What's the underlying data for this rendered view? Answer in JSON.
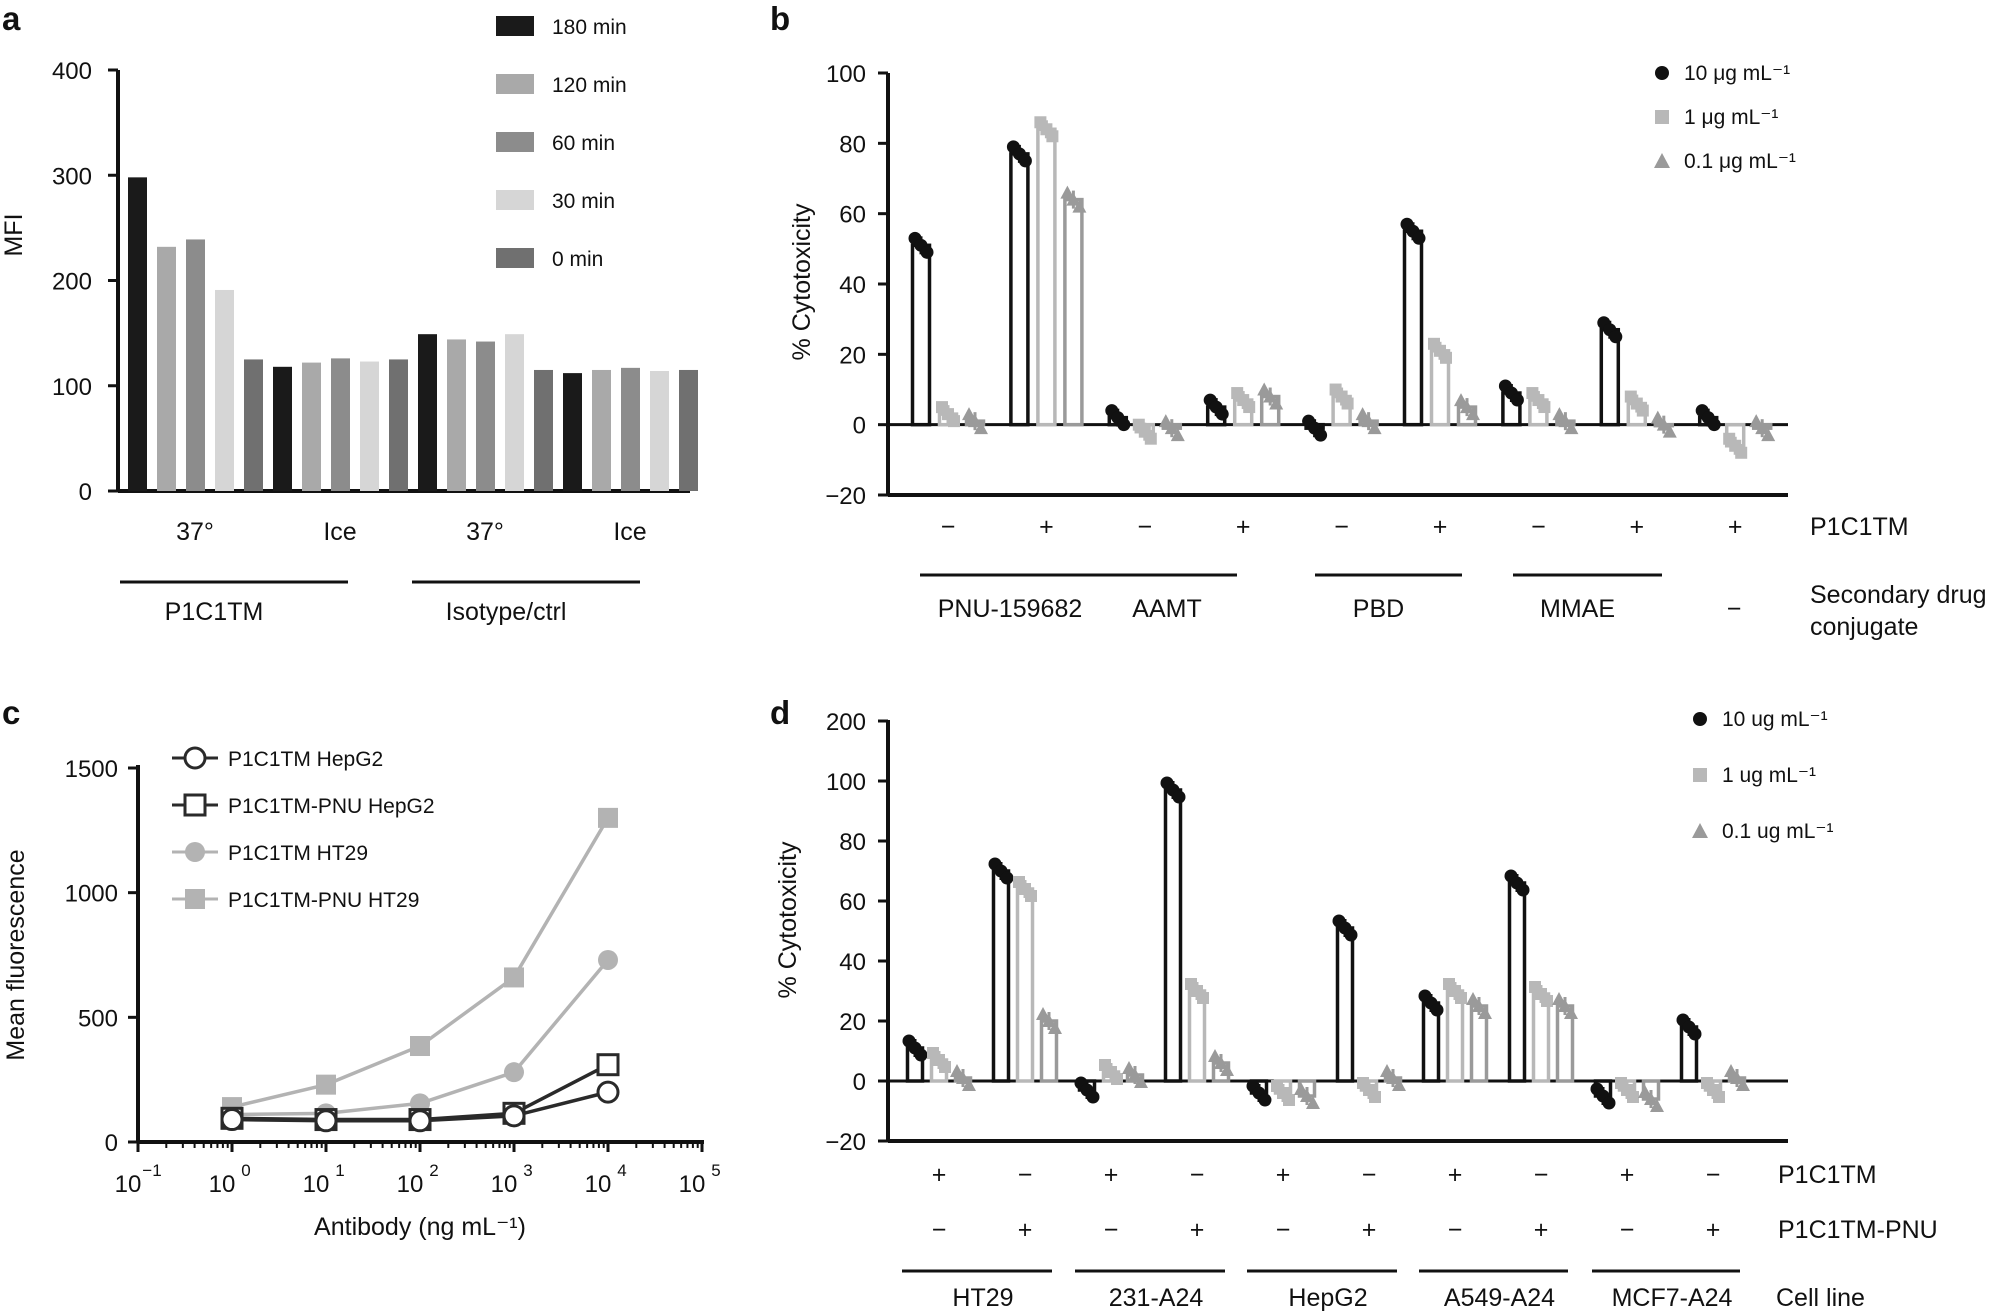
{
  "colors": {
    "c180": "#1a1a1a",
    "c120": "#a9a9a9",
    "c60": "#8c8c8c",
    "c30": "#d6d6d6",
    "c0": "#707070",
    "dose_high": "#111111",
    "dose_mid": "#b8b8b8",
    "dose_low": "#9a9a9a",
    "hepg2": "#2a2a2a",
    "ht29": "#b3b3b3"
  },
  "chart_data": [
    {
      "id": "a",
      "panel_label": "a",
      "type": "bar",
      "ylabel": "MFI",
      "ylim": [
        0,
        400
      ],
      "yticks": [
        "0",
        "100",
        "200",
        "300",
        "400"
      ],
      "legend": [
        "180 min",
        "120 min",
        "60 min",
        "30 min",
        "0 min"
      ],
      "groups": [
        {
          "label": "37°",
          "values": [
            298,
            232,
            239,
            191,
            125
          ]
        },
        {
          "label": "Ice",
          "values": [
            118,
            122,
            126,
            123,
            125
          ]
        },
        {
          "label": "37°",
          "values": [
            149,
            144,
            142,
            149,
            115
          ]
        },
        {
          "label": "Ice",
          "values": [
            112,
            115,
            117,
            114,
            115
          ]
        }
      ],
      "supergroups": [
        "P1C1TM",
        "Isotype/ctrl"
      ]
    },
    {
      "id": "b",
      "panel_label": "b",
      "type": "bar",
      "ylabel": "% Cytotoxicity",
      "ylim": [
        -20,
        100
      ],
      "yticks": [
        "−20",
        "0",
        "20",
        "40",
        "60",
        "80",
        "100"
      ],
      "legend": [
        "10 μg mL⁻¹",
        "1 μg mL⁻¹",
        "0.1 μg mL⁻¹"
      ],
      "row1_label": "P1C1TM",
      "row2_label_lines": [
        "Secondary drug",
        "conjugate"
      ],
      "groups": [
        {
          "sign": "−",
          "values": [
            51,
            3,
            1
          ]
        },
        {
          "sign": "+",
          "values": [
            77,
            84,
            64
          ]
        },
        {
          "sign": "−",
          "values": [
            2,
            -2,
            -1
          ]
        },
        {
          "sign": "+",
          "values": [
            5,
            7,
            8
          ]
        },
        {
          "sign": "−",
          "values": [
            -1,
            8,
            1
          ]
        },
        {
          "sign": "+",
          "values": [
            55,
            21,
            5
          ]
        },
        {
          "sign": "−",
          "values": [
            9,
            7,
            1
          ]
        },
        {
          "sign": "+",
          "values": [
            27,
            6,
            0
          ]
        },
        {
          "sign": "+",
          "values": [
            2,
            -6,
            -1
          ]
        }
      ],
      "drugs": [
        "PNU-159682",
        "AAMT",
        "PBD",
        "MMAE",
        "−"
      ]
    },
    {
      "id": "c",
      "panel_label": "c",
      "type": "line",
      "xlabel": "Antibody (ng mL⁻¹)",
      "ylabel": "Mean fluorescence",
      "ylim": [
        0,
        1500
      ],
      "yticks": [
        "0",
        "500",
        "1000",
        "1500"
      ],
      "xticks": [
        {
          "base": "10",
          "exp": "−1"
        },
        {
          "base": "10",
          "exp": "0"
        },
        {
          "base": "10",
          "exp": "1"
        },
        {
          "base": "10",
          "exp": "2"
        },
        {
          "base": "10",
          "exp": "3"
        },
        {
          "base": "10",
          "exp": "4"
        },
        {
          "base": "10",
          "exp": "5"
        }
      ],
      "x": [
        1,
        10,
        100,
        1000,
        10000
      ],
      "series": [
        {
          "name": "P1C1TM HepG2",
          "values": [
            90,
            85,
            85,
            105,
            200
          ]
        },
        {
          "name": "P1C1TM-PNU HepG2",
          "values": [
            95,
            90,
            90,
            115,
            310
          ]
        },
        {
          "name": "P1C1TM HT29",
          "values": [
            110,
            115,
            155,
            280,
            730
          ]
        },
        {
          "name": "P1C1TM-PNU HT29",
          "values": [
            140,
            230,
            385,
            660,
            1300
          ]
        }
      ]
    },
    {
      "id": "d",
      "panel_label": "d",
      "type": "bar",
      "ylabel": "% Cytotoxicity",
      "ylim": [
        -20,
        200
      ],
      "yticks": [
        "−20",
        "0",
        "20",
        "40",
        "60",
        "80",
        "100",
        "200"
      ],
      "legend": [
        "10 ug mL⁻¹",
        "1 ug mL⁻¹",
        "0.1 ug mL⁻¹"
      ],
      "row1_label": "P1C1TM",
      "row2_label": "P1C1TM-PNU",
      "row3_label": "Cell line",
      "groups": [
        {
          "s1": "+",
          "s2": "−",
          "values": [
            11,
            7,
            1
          ]
        },
        {
          "s1": "−",
          "s2": "+",
          "values": [
            70,
            64,
            20
          ]
        },
        {
          "s1": "+",
          "s2": "−",
          "values": [
            -3,
            3,
            2
          ]
        },
        {
          "s1": "−",
          "s2": "+",
          "values": [
            97,
            30,
            6
          ]
        },
        {
          "s1": "+",
          "s2": "−",
          "values": [
            -4,
            -4,
            -5
          ]
        },
        {
          "s1": "−",
          "s2": "+",
          "values": [
            51,
            -3,
            1
          ]
        },
        {
          "s1": "+",
          "s2": "−",
          "values": [
            26,
            30,
            25
          ]
        },
        {
          "s1": "−",
          "s2": "+",
          "values": [
            66,
            29,
            25
          ]
        },
        {
          "s1": "+",
          "s2": "−",
          "values": [
            -5,
            -3,
            -6
          ]
        },
        {
          "s1": "−",
          "s2": "+",
          "values": [
            18,
            -3,
            1
          ]
        }
      ],
      "cell_lines": [
        "HT29",
        "231-A24",
        "HepG2",
        "A549-A24",
        "MCF7-A24"
      ]
    }
  ]
}
